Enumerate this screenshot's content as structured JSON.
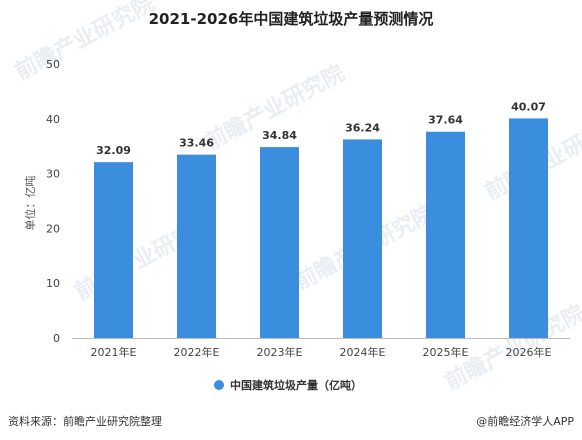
{
  "chart_data": {
    "type": "bar",
    "title": "2021-2026年中国建筑垃圾产量预测情况",
    "ylabel": "单位：亿吨",
    "categories": [
      "2021年E",
      "2022年E",
      "2023年E",
      "2024年E",
      "2025年E",
      "2026年E"
    ],
    "series": [
      {
        "name": "中国建筑垃圾产量（亿吨）",
        "values": [
          32.09,
          33.46,
          34.84,
          36.24,
          37.64,
          40.07
        ]
      }
    ],
    "ylim": [
      0,
      50
    ],
    "yticks": [
      0,
      10,
      20,
      30,
      40,
      50
    ],
    "grid": false,
    "legend": "bottom",
    "bar_color": "#3b8ddd"
  },
  "footer": {
    "source": "资料来源：前瞻产业研究院整理",
    "credit": "@前瞻经济学人APP"
  },
  "watermark": {
    "text": "前瞻产业研究院"
  }
}
